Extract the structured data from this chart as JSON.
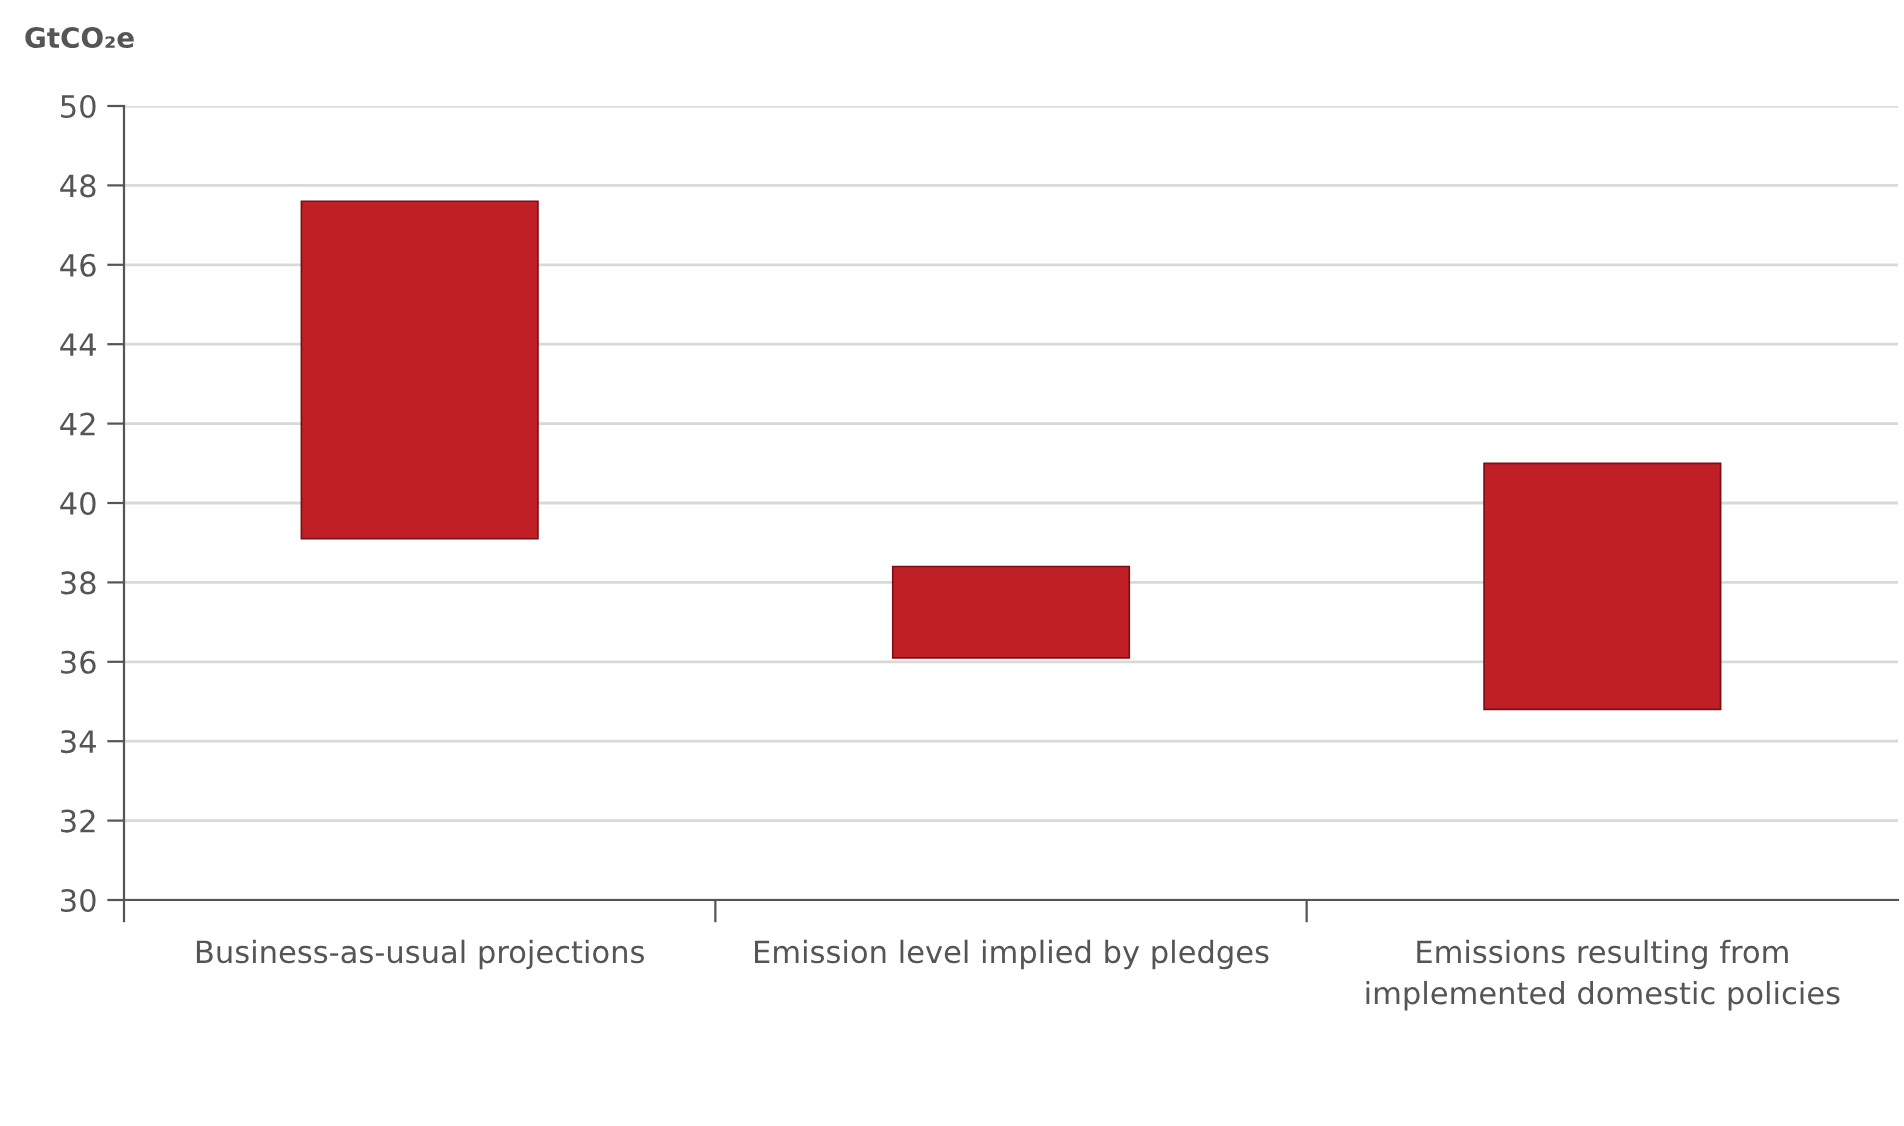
{
  "chart_data": {
    "type": "bar",
    "ylabel": "GtCO₂e",
    "categories": [
      "Business-as-usual projections",
      "Emission level implied by pledges",
      "Emissions resulting from implemented domestic policies"
    ],
    "base": [
      39.1,
      36.1,
      34.8
    ],
    "values": [
      8.5,
      2.3,
      6.2
    ],
    "color": "#c01f26",
    "ylim": [
      30,
      50
    ],
    "yticks": [
      30,
      32,
      34,
      36,
      38,
      40,
      42,
      44,
      46,
      48,
      50
    ],
    "grid": "y",
    "legend": false
  }
}
